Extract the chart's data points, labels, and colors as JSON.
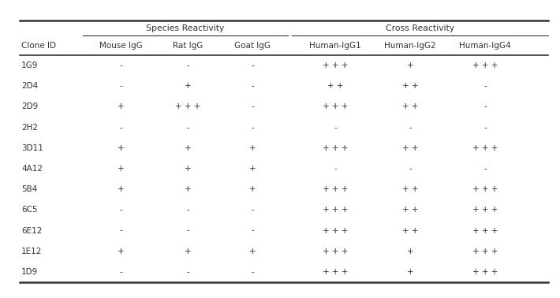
{
  "col_group1_label": "Species Reactivity",
  "col_group2_label": "Cross Reactivity",
  "col_headers": [
    "Clone ID",
    "Mouse IgG",
    "Rat IgG",
    "Goat IgG",
    "Human-IgG1",
    "Human-IgG2",
    "Human-IgG4"
  ],
  "rows": [
    [
      "1G9",
      "-",
      "-",
      "-",
      "+ + +",
      "+",
      "+ + +"
    ],
    [
      "2D4",
      "-",
      "+",
      "-",
      "+ +",
      "+ +",
      "-"
    ],
    [
      "2D9",
      "+",
      "+ + +",
      "-",
      "+ + +",
      "+ +",
      "-"
    ],
    [
      "2H2",
      "-",
      "-",
      "-",
      "-",
      "-",
      "-"
    ],
    [
      "3D11",
      "+",
      "+",
      "+",
      "+ + +",
      "+ +",
      "+ + +"
    ],
    [
      "4A12",
      "+",
      "+",
      "+",
      "-",
      "-",
      "-"
    ],
    [
      "5B4",
      "+",
      "+",
      "+",
      "+ + +",
      "+ +",
      "+ + +"
    ],
    [
      "6C5",
      "-",
      "-",
      "-",
      "+ + +",
      "+ +",
      "+ + +"
    ],
    [
      "6E12",
      "-",
      "-",
      "-",
      "+ + +",
      "+ +",
      "+ + +"
    ],
    [
      "1E12",
      "+",
      "+",
      "+",
      "+ + +",
      "+",
      "+ + +"
    ],
    [
      "1D9",
      "-",
      "-",
      "-",
      "+ + +",
      "+",
      "+ + +"
    ]
  ],
  "bg_color": "#ffffff",
  "line_color": "#333333",
  "text_color": "#333333",
  "cell_fontsize": 7.5,
  "header_fontsize": 7.5,
  "group_header_fontsize": 7.8
}
